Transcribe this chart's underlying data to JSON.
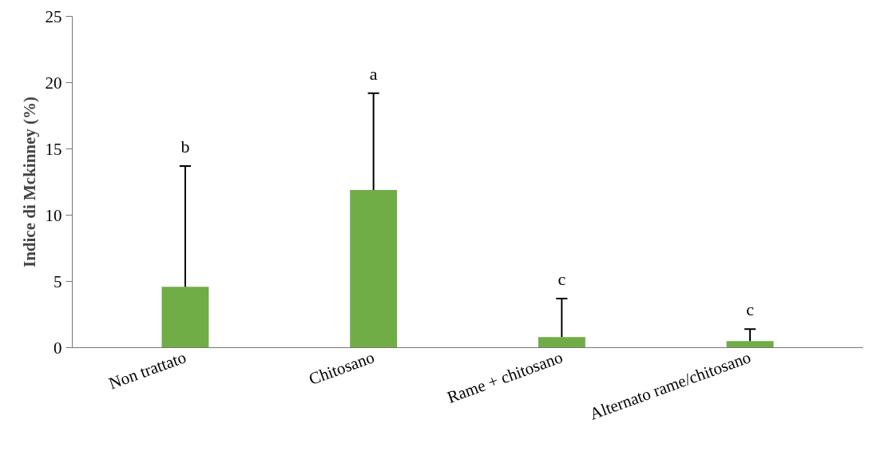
{
  "chart_data": {
    "type": "bar",
    "ylabel": "Indice di Mckinney (%)",
    "categories": [
      "Non trattato",
      "Chitosano",
      "Rame + chitosano",
      "Alternato rame/chitosano"
    ],
    "values": [
      4.6,
      11.9,
      0.8,
      0.5
    ],
    "color": "#70ad47",
    "errors": [
      [
        4.6,
        13.7
      ],
      [
        11.9,
        19.2
      ],
      [
        0.8,
        3.7
      ],
      [
        0.5,
        1.4
      ]
    ],
    "ylim": [
      0,
      25
    ],
    "yticks": [
      0,
      5,
      10,
      15,
      20,
      25
    ],
    "grid": false,
    "annotations": [
      "b",
      "a",
      "c",
      "c"
    ]
  }
}
